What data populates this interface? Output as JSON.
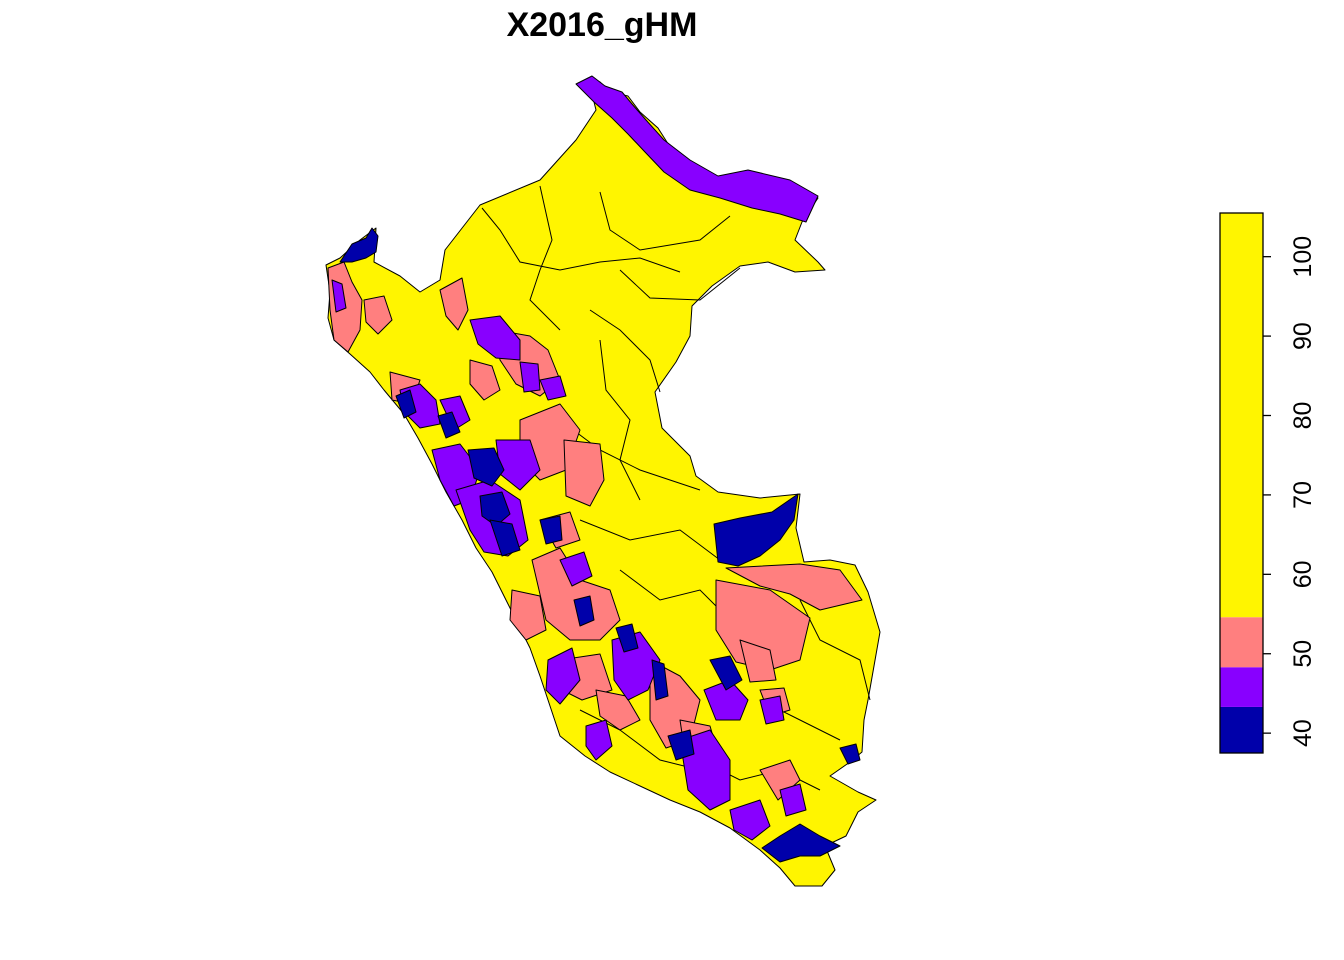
{
  "title": "X2016_gHM",
  "legend": {
    "bins": [
      {
        "from": 37.5,
        "to": 43.3,
        "color": "#0000AA"
      },
      {
        "from": 43.3,
        "to": 48.3,
        "color": "#8800FF"
      },
      {
        "from": 48.3,
        "to": 54.6,
        "color": "#FF7F7F"
      },
      {
        "from": 54.6,
        "to": 105.5,
        "color": "#FFF500"
      }
    ],
    "range": [
      37.5,
      105.5
    ],
    "ticks": [
      "40",
      "50",
      "60",
      "70",
      "80",
      "90",
      "100"
    ]
  },
  "colors": {
    "very_low": "#0000AA",
    "low": "#8800FF",
    "medium": "#FF7F7F",
    "high": "#FFF500"
  }
}
